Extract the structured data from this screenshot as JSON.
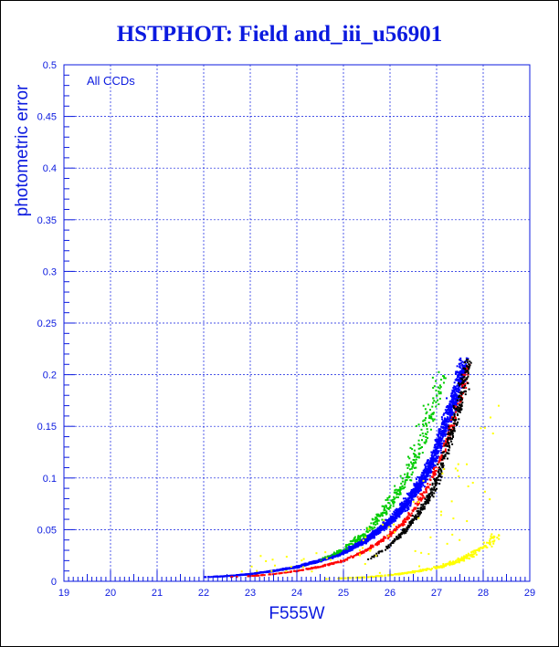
{
  "title": "HSTPHOT: Field and_iii_u56901",
  "chart_data": {
    "type": "scatter",
    "title": "HSTPHOT: Field and_iii_u56901",
    "xlabel": "F555W",
    "ylabel": "photometric error",
    "annotation": "All CCDs",
    "xlim": [
      19,
      29
    ],
    "ylim": [
      0,
      0.5
    ],
    "x_ticks": [
      "19",
      "20",
      "21",
      "22",
      "23",
      "24",
      "25",
      "26",
      "27",
      "28",
      "29"
    ],
    "y_ticks": [
      "0",
      "0.05",
      "0.1",
      "0.15",
      "0.2",
      "0.25",
      "0.3",
      "0.35",
      "0.4",
      "0.45",
      "0.5"
    ],
    "grid": true,
    "series": [
      {
        "color": "#0000ff",
        "values_x": [
          22.0,
          22.5,
          23.0,
          23.5,
          24.0,
          24.5,
          25.0,
          25.5,
          26.0,
          26.3,
          26.6,
          26.9,
          27.1,
          27.3,
          27.5,
          27.6
        ],
        "values_y": [
          0.004,
          0.005,
          0.007,
          0.01,
          0.014,
          0.02,
          0.028,
          0.04,
          0.058,
          0.072,
          0.092,
          0.115,
          0.14,
          0.165,
          0.195,
          0.215
        ]
      },
      {
        "color": "#ff0000",
        "values_x": [
          22.5,
          23.0,
          23.5,
          24.0,
          24.5,
          25.0,
          25.5,
          26.0,
          26.4,
          26.8,
          27.1,
          27.4,
          27.7
        ],
        "values_y": [
          0.004,
          0.005,
          0.007,
          0.01,
          0.014,
          0.02,
          0.03,
          0.045,
          0.062,
          0.09,
          0.12,
          0.16,
          0.21
        ]
      },
      {
        "color": "#000000",
        "values_x": [
          25.5,
          26.0,
          26.3,
          26.6,
          26.9,
          27.1,
          27.3,
          27.5,
          27.7
        ],
        "values_y": [
          0.02,
          0.035,
          0.048,
          0.065,
          0.085,
          0.11,
          0.14,
          0.175,
          0.215
        ]
      },
      {
        "color": "#00cc00",
        "values_x": [
          24.5,
          25.0,
          25.5,
          26.0,
          26.3,
          26.6,
          26.8,
          27.0,
          27.2
        ],
        "values_y": [
          0.02,
          0.03,
          0.045,
          0.07,
          0.09,
          0.115,
          0.14,
          0.165,
          0.2
        ]
      },
      {
        "color": "#ffff00",
        "values_x": [
          24.5,
          25.0,
          25.5,
          26.0,
          26.5,
          27.0,
          27.3,
          27.6,
          27.9,
          28.1,
          28.3
        ],
        "values_y": [
          0.002,
          0.003,
          0.004,
          0.006,
          0.009,
          0.013,
          0.017,
          0.022,
          0.03,
          0.035,
          0.045
        ]
      }
    ]
  }
}
